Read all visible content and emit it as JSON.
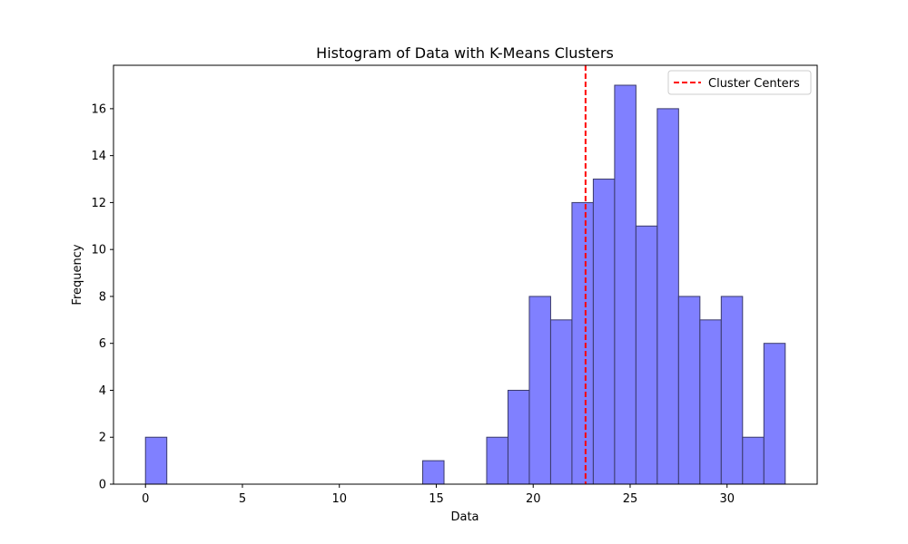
{
  "chart_data": {
    "type": "bar",
    "title": "Histogram of Data with K-Means Clusters",
    "xlabel": "Data",
    "ylabel": "Frequency",
    "xlim": [
      -1.65,
      34.65
    ],
    "ylim": [
      0,
      17.85
    ],
    "xticks": [
      0,
      5,
      10,
      15,
      20,
      25,
      30
    ],
    "yticks": [
      0,
      2,
      4,
      6,
      8,
      10,
      12,
      14,
      16
    ],
    "bins": [
      {
        "start": 0.0,
        "end": 1.1,
        "count": 2
      },
      {
        "start": 1.1,
        "end": 2.2,
        "count": 0
      },
      {
        "start": 2.2,
        "end": 3.3,
        "count": 0
      },
      {
        "start": 3.3,
        "end": 4.4,
        "count": 0
      },
      {
        "start": 4.4,
        "end": 5.5,
        "count": 0
      },
      {
        "start": 5.5,
        "end": 6.6,
        "count": 0
      },
      {
        "start": 6.6,
        "end": 7.7,
        "count": 0
      },
      {
        "start": 7.7,
        "end": 8.8,
        "count": 0
      },
      {
        "start": 8.8,
        "end": 9.9,
        "count": 0
      },
      {
        "start": 9.9,
        "end": 11.0,
        "count": 0
      },
      {
        "start": 11.0,
        "end": 12.1,
        "count": 0
      },
      {
        "start": 12.1,
        "end": 13.2,
        "count": 0
      },
      {
        "start": 13.2,
        "end": 14.3,
        "count": 0
      },
      {
        "start": 14.3,
        "end": 15.4,
        "count": 1
      },
      {
        "start": 15.4,
        "end": 16.5,
        "count": 0
      },
      {
        "start": 16.5,
        "end": 17.6,
        "count": 0
      },
      {
        "start": 17.6,
        "end": 18.7,
        "count": 2
      },
      {
        "start": 18.7,
        "end": 19.8,
        "count": 4
      },
      {
        "start": 19.8,
        "end": 20.9,
        "count": 8
      },
      {
        "start": 20.9,
        "end": 22.0,
        "count": 7
      },
      {
        "start": 22.0,
        "end": 23.1,
        "count": 12
      },
      {
        "start": 23.1,
        "end": 24.2,
        "count": 13
      },
      {
        "start": 24.2,
        "end": 25.3,
        "count": 17
      },
      {
        "start": 25.3,
        "end": 26.4,
        "count": 11
      },
      {
        "start": 26.4,
        "end": 27.5,
        "count": 16
      },
      {
        "start": 27.5,
        "end": 28.6,
        "count": 8
      },
      {
        "start": 28.6,
        "end": 29.7,
        "count": 7
      },
      {
        "start": 29.7,
        "end": 30.8,
        "count": 8
      },
      {
        "start": 30.8,
        "end": 31.9,
        "count": 2
      },
      {
        "start": 31.9,
        "end": 33.0,
        "count": 6
      }
    ],
    "cluster_centers": [
      22.7
    ],
    "legend": {
      "label": "Cluster Centers",
      "position": "upper right"
    },
    "grid": false,
    "colors": {
      "bar_fill": "#8080ff",
      "bar_edge": "#3a3a6a",
      "center_line": "#ff0000"
    }
  }
}
